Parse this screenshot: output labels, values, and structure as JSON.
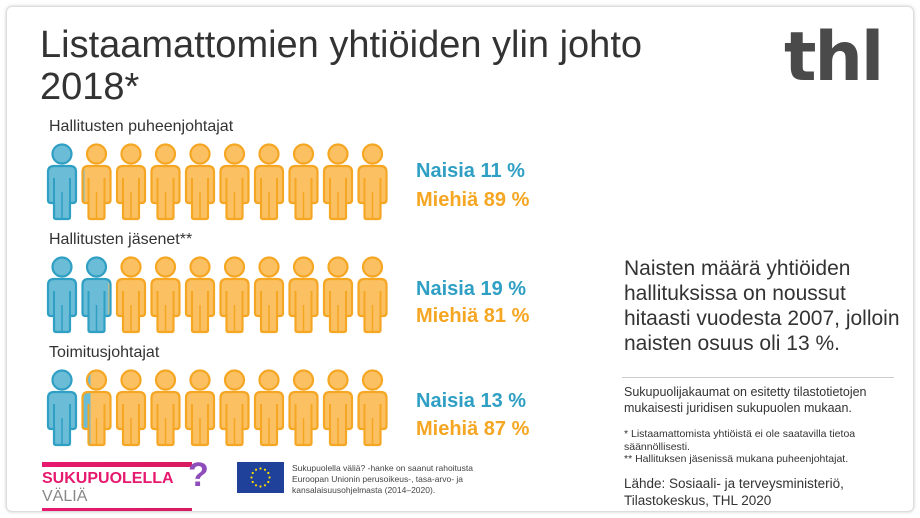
{
  "title": "Listaamattomien yhtiöiden ylin johto 2018*",
  "logo": "thl",
  "colors": {
    "women": "#2f9fc4",
    "men": "#f5a623",
    "women_fill": "#6bbcd6",
    "men_fill": "#fbc062"
  },
  "chart_data": {
    "type": "pictogram",
    "icons_per_row": 10,
    "rows": [
      {
        "label": "Hallitusten puheenjohtajat",
        "women_label": "Naisia 11 %",
        "men_label": "Miehiä 89 %",
        "women_pct": 11,
        "men_pct": 89
      },
      {
        "label": "Hallitusten jäsenet**",
        "women_label": "Naisia 19 %",
        "men_label": "Miehiä 81 %",
        "women_pct": 19,
        "men_pct": 81
      },
      {
        "label": "Toimitusjohtajat",
        "women_label": "Naisia 13 %",
        "men_label": "Miehiä 87 %",
        "women_pct": 13,
        "men_pct": 87
      }
    ]
  },
  "note": "Naisten määrä yhtiöiden hallituksissa on noussut hitaasti vuodesta 2007, jolloin naisten osuus oli 13 %.",
  "legal_note": "Sukupuolijakaumat on esitetty tilastotietojen mukaisesti juridisen sukupuolen mukaan.",
  "footnote1": "* Listaamattomista yhtiöistä ei ole saatavilla tietoa säännöllisesti.",
  "footnote2": "** Hallituksen jäsenissä mukana puheenjohtajat.",
  "source": "Lähde: Sosiaali- ja terveysministeriö, Tilastokeskus, THL 2020",
  "sv_logo": {
    "bold": "SUKUPUOLELLA",
    "light": "VÄLIÄ",
    "mark": "?"
  },
  "eu_text": "Sukupuolella väliä? -hanke on saanut rahoitusta Euroopan Unionin perusoikeus-, tasa-arvo- ja kansalaisuusohjelmasta (2014–2020)."
}
